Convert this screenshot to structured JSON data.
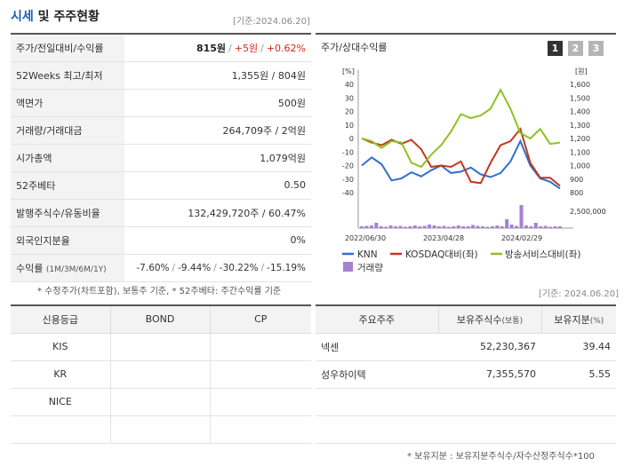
{
  "header": {
    "title_accent": "시세",
    "title_rest": "및 주주현황",
    "date": "[기준:2024.06.20]"
  },
  "quote_rows": [
    {
      "key": "주가/전일대비/수익률"
    },
    {
      "key": "52Weeks 최고/최저",
      "value": "1,355원 / 804원"
    },
    {
      "key": "액면가",
      "value": "500원"
    },
    {
      "key": "거래량/거래대금",
      "value": "264,709주 / 2억원"
    },
    {
      "key": "시가총액",
      "value": "1,079억원"
    },
    {
      "key": "52주베타",
      "value": "0.50"
    },
    {
      "key": "발행주식수/유동비율",
      "value": "132,429,720주 / 60.47%"
    },
    {
      "key": "외국인지분율",
      "value": "0%"
    },
    {
      "key": "수익률",
      "key_small": "(1M/3M/6M/1Y)"
    }
  ],
  "price": {
    "current": "815원",
    "change": "+5원",
    "rate": "+0.62%"
  },
  "returns": {
    "m1": "-7.60%",
    "m3": "-9.44%",
    "m6": "-30.22%",
    "y1": "-15.19%"
  },
  "note1": "* 수정주가(차트포함), 보통주 기준, * 52주베타: 주간수익률 기준",
  "chart_panel": {
    "title": "주가/상대수익률",
    "buttons": [
      "1",
      "2",
      "3"
    ],
    "date": "[기준: 2024.06.20]"
  },
  "chart_data": {
    "type": "line",
    "left_axis_unit": "[%]",
    "right_axis_unit": "[원]",
    "left_ticks": [
      "40",
      "30",
      "20",
      "10",
      "0",
      "-10",
      "-20",
      "-30",
      "-40"
    ],
    "right_ticks": [
      "1,600",
      "1,500",
      "1,400",
      "1,300",
      "1,200",
      "1,100",
      "1,000",
      "900",
      "800"
    ],
    "volume_tick": "2,500,000",
    "x_ticks": [
      "2022/06/30",
      "2023/04/28",
      "2024/02/29"
    ],
    "ylim_left": [
      -40,
      40
    ],
    "ylim_right": [
      800,
      1600
    ],
    "series": [
      {
        "name": "KNN",
        "color": "#2f6fce",
        "axis": "right",
        "values": [
          1000,
          1060,
          1010,
          890,
          905,
          950,
          920,
          965,
          1000,
          945,
          955,
          985,
          935,
          915,
          945,
          1030,
          1180,
          1000,
          905,
          880,
          830
        ]
      },
      {
        "name": "KOSDAQ대비(좌)",
        "color": "#c0391f",
        "axis": "left",
        "values": [
          0,
          -3,
          -5,
          -1,
          -4,
          -1,
          -8,
          -21,
          -20,
          -21,
          -17,
          -32,
          -33,
          -18,
          -5,
          -2,
          7,
          -18,
          -29,
          -29,
          -35
        ]
      },
      {
        "name": "방송서비스대비(좌)",
        "color": "#8dc21f",
        "axis": "left",
        "values": [
          0,
          -2,
          -7,
          -2,
          -3,
          -18,
          -21,
          -12,
          -5,
          5,
          18,
          15,
          17,
          22,
          36,
          22,
          4,
          0,
          7,
          -4,
          -3
        ]
      }
    ],
    "volume_series": {
      "name": "거래량",
      "color": "#a77fd4",
      "values": [
        0.2,
        0.25,
        0.3,
        0.6,
        0.2,
        0.15,
        0.3,
        0.2,
        0.25,
        0.15,
        0.2,
        0.3,
        0.2,
        0.25,
        0.4,
        0.3,
        0.2,
        0.25,
        0.15,
        0.2,
        0.3,
        0.2,
        0.2,
        0.35,
        0.25,
        0.2,
        0.15,
        0.2,
        0.3,
        0.2,
        1.0,
        0.4,
        0.25,
        2.6,
        0.3,
        0.2,
        0.6,
        0.2,
        0.25,
        0.15,
        0.2,
        0.2
      ]
    },
    "legend": [
      "KNN",
      "KOSDAQ대비(좌)",
      "방송서비스대비(좌)",
      "거래량"
    ]
  },
  "credit": {
    "headers": [
      "신용등급",
      "BOND",
      "CP"
    ],
    "rows": [
      [
        "KIS",
        "",
        ""
      ],
      [
        "KR",
        "",
        ""
      ],
      [
        "NICE",
        "",
        ""
      ],
      [
        "",
        "",
        ""
      ]
    ]
  },
  "holders": {
    "headers": [
      "주요주주",
      "보유주식수",
      "(보통)",
      "보유지분",
      "(%)"
    ],
    "rows": [
      {
        "name": "넥센",
        "shares": "52,230,367",
        "pct": "39.44"
      },
      {
        "name": "성우하이텍",
        "shares": "7,355,570",
        "pct": "5.55"
      },
      {
        "name": "",
        "shares": "",
        "pct": ""
      },
      {
        "name": "",
        "shares": "",
        "pct": ""
      }
    ]
  },
  "note2": "* 보유지분 : 보유지분주식수/자수산정주식수*100",
  "colors": {
    "accent": "#1a5fb4",
    "up": "#d6281c",
    "down": "#1a5fb4"
  }
}
